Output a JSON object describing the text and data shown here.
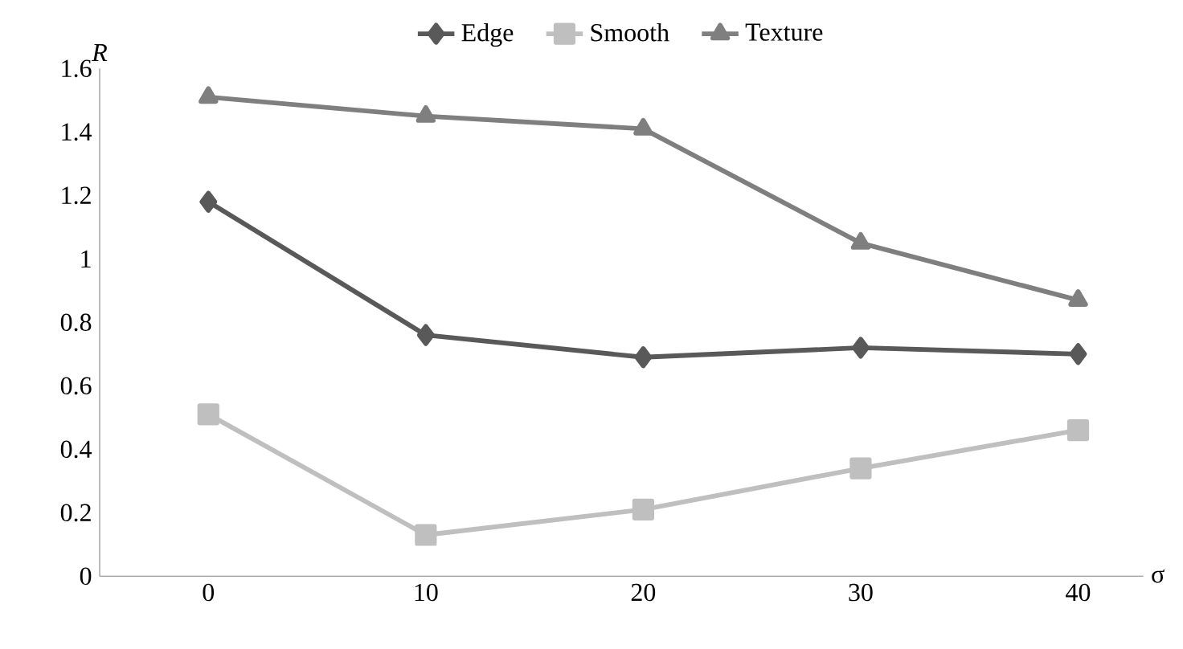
{
  "chart_data": {
    "type": "line",
    "xlabel": "σ",
    "ylabel": "R",
    "categories": [
      "0",
      "10",
      "20",
      "30",
      "40"
    ],
    "ylim": [
      0,
      1.6
    ],
    "yticks": [
      0,
      0.2,
      0.4,
      0.6,
      0.8,
      1,
      1.2,
      1.4,
      1.6
    ],
    "grid": false,
    "legend": "top",
    "series": [
      {
        "name": "Edge",
        "color": "#595959",
        "marker": "diamond",
        "values": [
          1.18,
          0.76,
          0.69,
          0.72,
          0.7
        ]
      },
      {
        "name": "Smooth",
        "color": "#bfbfbf",
        "marker": "square",
        "values": [
          0.51,
          0.13,
          0.21,
          0.34,
          0.46
        ]
      },
      {
        "name": "Texture",
        "color": "#7f7f7f",
        "marker": "triangle",
        "values": [
          1.51,
          1.45,
          1.41,
          1.05,
          0.87
        ]
      }
    ]
  }
}
